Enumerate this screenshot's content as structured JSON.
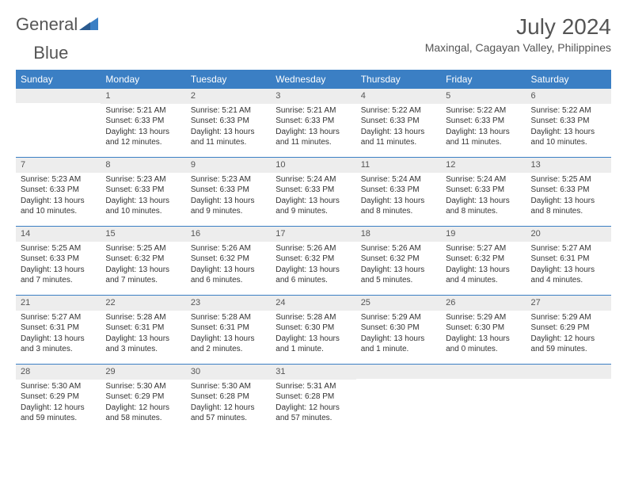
{
  "logo": {
    "text1": "General",
    "text2": "Blue"
  },
  "title": "July 2024",
  "location": "Maxingal, Cagayan Valley, Philippines",
  "colors": {
    "header_bg": "#3b7fc4",
    "header_text": "#ffffff",
    "daynum_bg": "#ededed",
    "text": "#333333",
    "rule": "#3b7fc4",
    "page_bg": "#ffffff"
  },
  "weekdays": [
    "Sunday",
    "Monday",
    "Tuesday",
    "Wednesday",
    "Thursday",
    "Friday",
    "Saturday"
  ],
  "weeks": [
    [
      {
        "n": "",
        "sunrise": "",
        "sunset": "",
        "daylight": ""
      },
      {
        "n": "1",
        "sunrise": "Sunrise: 5:21 AM",
        "sunset": "Sunset: 6:33 PM",
        "daylight": "Daylight: 13 hours and 12 minutes."
      },
      {
        "n": "2",
        "sunrise": "Sunrise: 5:21 AM",
        "sunset": "Sunset: 6:33 PM",
        "daylight": "Daylight: 13 hours and 11 minutes."
      },
      {
        "n": "3",
        "sunrise": "Sunrise: 5:21 AM",
        "sunset": "Sunset: 6:33 PM",
        "daylight": "Daylight: 13 hours and 11 minutes."
      },
      {
        "n": "4",
        "sunrise": "Sunrise: 5:22 AM",
        "sunset": "Sunset: 6:33 PM",
        "daylight": "Daylight: 13 hours and 11 minutes."
      },
      {
        "n": "5",
        "sunrise": "Sunrise: 5:22 AM",
        "sunset": "Sunset: 6:33 PM",
        "daylight": "Daylight: 13 hours and 11 minutes."
      },
      {
        "n": "6",
        "sunrise": "Sunrise: 5:22 AM",
        "sunset": "Sunset: 6:33 PM",
        "daylight": "Daylight: 13 hours and 10 minutes."
      }
    ],
    [
      {
        "n": "7",
        "sunrise": "Sunrise: 5:23 AM",
        "sunset": "Sunset: 6:33 PM",
        "daylight": "Daylight: 13 hours and 10 minutes."
      },
      {
        "n": "8",
        "sunrise": "Sunrise: 5:23 AM",
        "sunset": "Sunset: 6:33 PM",
        "daylight": "Daylight: 13 hours and 10 minutes."
      },
      {
        "n": "9",
        "sunrise": "Sunrise: 5:23 AM",
        "sunset": "Sunset: 6:33 PM",
        "daylight": "Daylight: 13 hours and 9 minutes."
      },
      {
        "n": "10",
        "sunrise": "Sunrise: 5:24 AM",
        "sunset": "Sunset: 6:33 PM",
        "daylight": "Daylight: 13 hours and 9 minutes."
      },
      {
        "n": "11",
        "sunrise": "Sunrise: 5:24 AM",
        "sunset": "Sunset: 6:33 PM",
        "daylight": "Daylight: 13 hours and 8 minutes."
      },
      {
        "n": "12",
        "sunrise": "Sunrise: 5:24 AM",
        "sunset": "Sunset: 6:33 PM",
        "daylight": "Daylight: 13 hours and 8 minutes."
      },
      {
        "n": "13",
        "sunrise": "Sunrise: 5:25 AM",
        "sunset": "Sunset: 6:33 PM",
        "daylight": "Daylight: 13 hours and 8 minutes."
      }
    ],
    [
      {
        "n": "14",
        "sunrise": "Sunrise: 5:25 AM",
        "sunset": "Sunset: 6:33 PM",
        "daylight": "Daylight: 13 hours and 7 minutes."
      },
      {
        "n": "15",
        "sunrise": "Sunrise: 5:25 AM",
        "sunset": "Sunset: 6:32 PM",
        "daylight": "Daylight: 13 hours and 7 minutes."
      },
      {
        "n": "16",
        "sunrise": "Sunrise: 5:26 AM",
        "sunset": "Sunset: 6:32 PM",
        "daylight": "Daylight: 13 hours and 6 minutes."
      },
      {
        "n": "17",
        "sunrise": "Sunrise: 5:26 AM",
        "sunset": "Sunset: 6:32 PM",
        "daylight": "Daylight: 13 hours and 6 minutes."
      },
      {
        "n": "18",
        "sunrise": "Sunrise: 5:26 AM",
        "sunset": "Sunset: 6:32 PM",
        "daylight": "Daylight: 13 hours and 5 minutes."
      },
      {
        "n": "19",
        "sunrise": "Sunrise: 5:27 AM",
        "sunset": "Sunset: 6:32 PM",
        "daylight": "Daylight: 13 hours and 4 minutes."
      },
      {
        "n": "20",
        "sunrise": "Sunrise: 5:27 AM",
        "sunset": "Sunset: 6:31 PM",
        "daylight": "Daylight: 13 hours and 4 minutes."
      }
    ],
    [
      {
        "n": "21",
        "sunrise": "Sunrise: 5:27 AM",
        "sunset": "Sunset: 6:31 PM",
        "daylight": "Daylight: 13 hours and 3 minutes."
      },
      {
        "n": "22",
        "sunrise": "Sunrise: 5:28 AM",
        "sunset": "Sunset: 6:31 PM",
        "daylight": "Daylight: 13 hours and 3 minutes."
      },
      {
        "n": "23",
        "sunrise": "Sunrise: 5:28 AM",
        "sunset": "Sunset: 6:31 PM",
        "daylight": "Daylight: 13 hours and 2 minutes."
      },
      {
        "n": "24",
        "sunrise": "Sunrise: 5:28 AM",
        "sunset": "Sunset: 6:30 PM",
        "daylight": "Daylight: 13 hours and 1 minute."
      },
      {
        "n": "25",
        "sunrise": "Sunrise: 5:29 AM",
        "sunset": "Sunset: 6:30 PM",
        "daylight": "Daylight: 13 hours and 1 minute."
      },
      {
        "n": "26",
        "sunrise": "Sunrise: 5:29 AM",
        "sunset": "Sunset: 6:30 PM",
        "daylight": "Daylight: 13 hours and 0 minutes."
      },
      {
        "n": "27",
        "sunrise": "Sunrise: 5:29 AM",
        "sunset": "Sunset: 6:29 PM",
        "daylight": "Daylight: 12 hours and 59 minutes."
      }
    ],
    [
      {
        "n": "28",
        "sunrise": "Sunrise: 5:30 AM",
        "sunset": "Sunset: 6:29 PM",
        "daylight": "Daylight: 12 hours and 59 minutes."
      },
      {
        "n": "29",
        "sunrise": "Sunrise: 5:30 AM",
        "sunset": "Sunset: 6:29 PM",
        "daylight": "Daylight: 12 hours and 58 minutes."
      },
      {
        "n": "30",
        "sunrise": "Sunrise: 5:30 AM",
        "sunset": "Sunset: 6:28 PM",
        "daylight": "Daylight: 12 hours and 57 minutes."
      },
      {
        "n": "31",
        "sunrise": "Sunrise: 5:31 AM",
        "sunset": "Sunset: 6:28 PM",
        "daylight": "Daylight: 12 hours and 57 minutes."
      },
      {
        "n": "",
        "sunrise": "",
        "sunset": "",
        "daylight": ""
      },
      {
        "n": "",
        "sunrise": "",
        "sunset": "",
        "daylight": ""
      },
      {
        "n": "",
        "sunrise": "",
        "sunset": "",
        "daylight": ""
      }
    ]
  ]
}
